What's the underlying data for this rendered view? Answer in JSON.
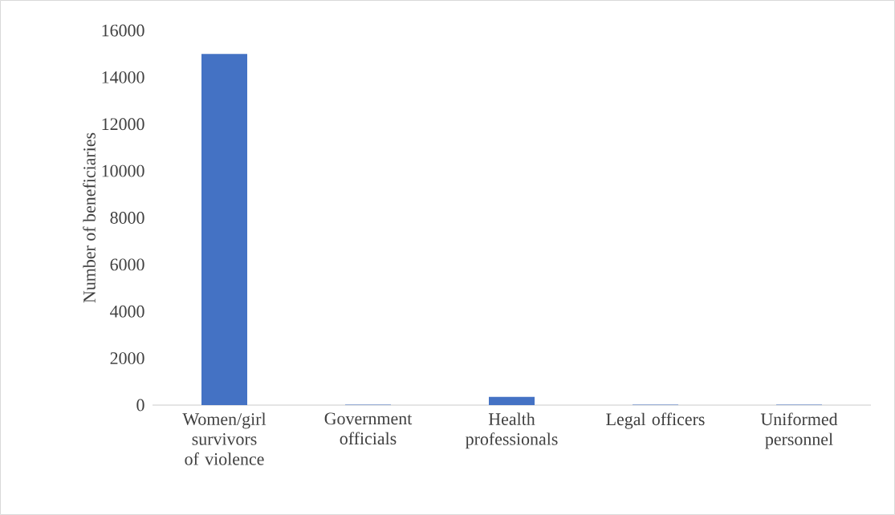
{
  "chart_data": {
    "type": "bar",
    "ylabel": "Number of beneficiaries",
    "categories": [
      "Women/girl survivors of violence",
      "Government officials",
      "Health professionals",
      "Legal officers",
      "Uniformed personnel"
    ],
    "values": [
      15000,
      20,
      350,
      20,
      20
    ],
    "color": "#4472c4",
    "ylim": [
      0,
      16000
    ],
    "yticks": [
      0,
      2000,
      4000,
      6000,
      8000,
      10000,
      12000,
      14000,
      16000
    ],
    "grid": false
  }
}
